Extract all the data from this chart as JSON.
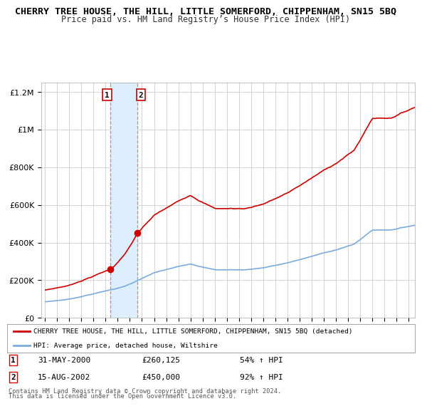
{
  "title": "CHERRY TREE HOUSE, THE HILL, LITTLE SOMERFORD, CHIPPENHAM, SN15 5BQ",
  "subtitle": "Price paid vs. HM Land Registry’s House Price Index (HPI)",
  "background_color": "#ffffff",
  "plot_bg_color": "#ffffff",
  "grid_color": "#cccccc",
  "legend_label_red": "CHERRY TREE HOUSE, THE HILL, LITTLE SOMERFORD, CHIPPENHAM, SN15 5BQ (detached)",
  "legend_label_blue": "HPI: Average price, detached house, Wiltshire",
  "red_color": "#cc0000",
  "blue_color": "#7aabdc",
  "shade_color": "#ddeeff",
  "vline_color": "#e08080",
  "annotation1": {
    "label": "1",
    "x_val": 2000.42,
    "price": 260125,
    "pct": "54%",
    "date_str": "31-MAY-2000"
  },
  "annotation2": {
    "label": "2",
    "x_val": 2002.62,
    "price": 450000,
    "pct": "92%",
    "date_str": "15-AUG-2002"
  },
  "footnote1": "Contains HM Land Registry data © Crown copyright and database right 2024.",
  "footnote2": "This data is licensed under the Open Government Licence v3.0.",
  "ylim": [
    0,
    1250000
  ],
  "xlim": [
    1994.7,
    2025.5
  ],
  "yticks": [
    0,
    200000,
    400000,
    600000,
    800000,
    1000000,
    1200000
  ],
  "ylabels": [
    "£0",
    "£200K",
    "£400K",
    "£600K",
    "£800K",
    "£1M",
    "£1.2M"
  ]
}
